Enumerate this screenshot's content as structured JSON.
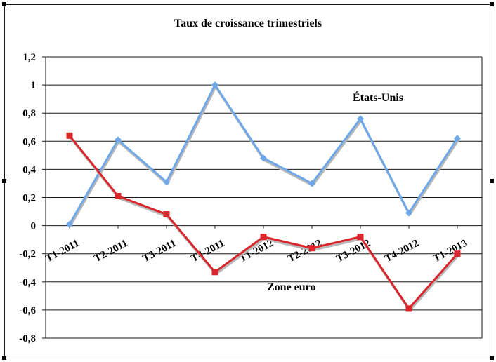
{
  "chart_data": {
    "type": "line",
    "title": "Taux de croissance trimestriels",
    "categories": [
      "T1-2011",
      "T2-2011",
      "T3-2011",
      "T4-2011",
      "T1-2012",
      "T2-2012",
      "T3-2012",
      "T4-2012",
      "T1-2013"
    ],
    "series": [
      {
        "name": "États-Unis",
        "values": [
          0.01,
          0.61,
          0.31,
          1.0,
          0.48,
          0.3,
          0.76,
          0.09,
          0.62
        ],
        "color": "#6fa8e8",
        "marker": "diamond"
      },
      {
        "name": "Zone euro",
        "values": [
          0.64,
          0.21,
          0.08,
          -0.33,
          -0.08,
          -0.16,
          -0.08,
          -0.59,
          -0.2
        ],
        "color": "#d9252b",
        "marker": "square"
      }
    ],
    "ylim": [
      -0.8,
      1.2
    ],
    "yticks": [
      "1,2",
      "1",
      "0,8",
      "0,6",
      "0,4",
      "0,2",
      "0",
      "-0,2",
      "-0,4",
      "-0,6",
      "-0,8"
    ],
    "grid": true,
    "annotations": [
      "États-Unis",
      "Zone euro"
    ]
  }
}
